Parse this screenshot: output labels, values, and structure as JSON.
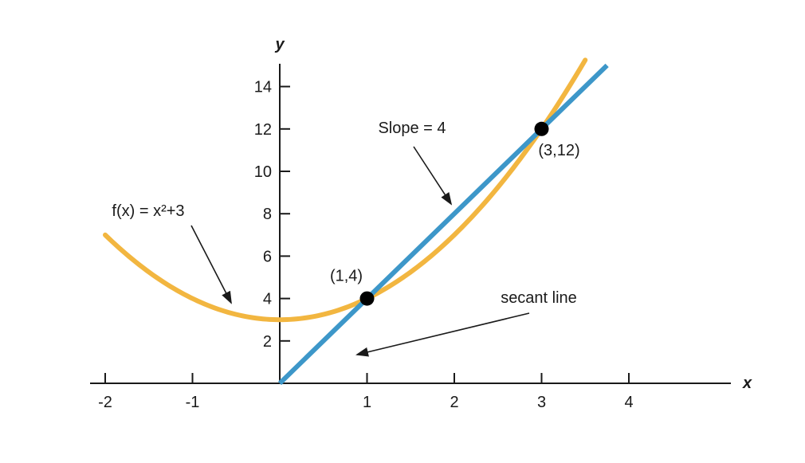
{
  "chart_data": {
    "type": "line",
    "xlabel": "x",
    "ylabel": "y",
    "x_ticks": [
      -2,
      -1,
      1,
      2,
      3,
      4
    ],
    "y_ticks": [
      2,
      4,
      6,
      8,
      10,
      12,
      14
    ],
    "series": [
      {
        "name": "f(x) = x²+3",
        "kind": "function",
        "expression": "x^2+3",
        "x_range": [
          -2,
          3.5
        ],
        "color": "#f2b640"
      },
      {
        "name": "secant line",
        "kind": "line",
        "slope": 4,
        "intercept": 0,
        "x_range": [
          0,
          3.75
        ],
        "color": "#3d97c9"
      }
    ],
    "points": [
      {
        "x": 1,
        "y": 4,
        "label": "(1,4)"
      },
      {
        "x": 3,
        "y": 12,
        "label": "(3,12)"
      }
    ],
    "annotations": [
      {
        "text": "Slope = 4"
      },
      {
        "text": "f(x) = x²+3"
      },
      {
        "text": "secant line"
      }
    ]
  }
}
